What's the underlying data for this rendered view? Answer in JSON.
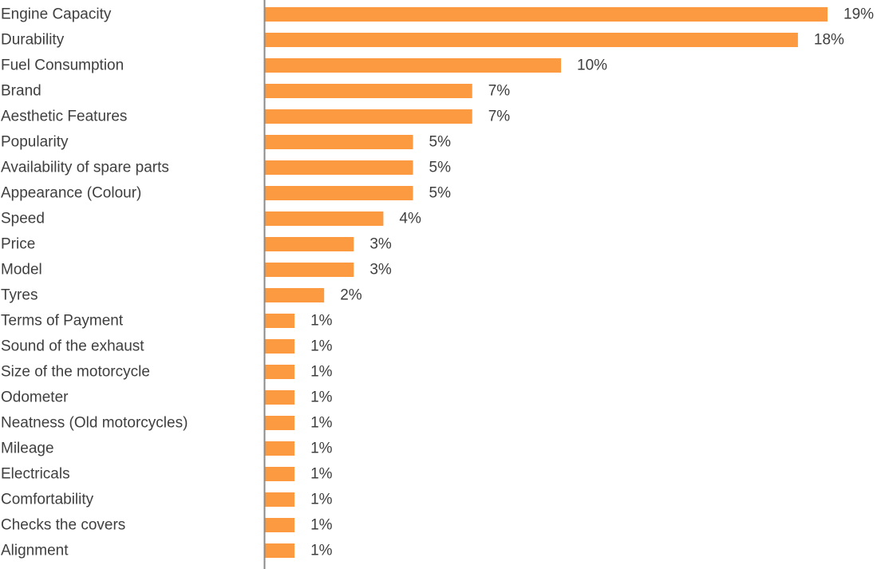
{
  "chart_data": {
    "type": "bar",
    "orientation": "horizontal",
    "title": "",
    "xlabel": "",
    "ylabel": "",
    "unit": "%",
    "xlim": [
      0,
      19
    ],
    "grid": false,
    "legend": "none",
    "bar_color": "#fb9a40",
    "axis_color": "#8a8a8a",
    "text_color": "#3f3f3f",
    "categories": [
      "Engine Capacity",
      "Durability",
      "Fuel Consumption",
      "Brand",
      "Aesthetic Features",
      "Popularity",
      "Availability of spare parts",
      "Appearance (Colour)",
      "Speed",
      "Price",
      "Model",
      "Tyres",
      "Terms of Payment",
      "Sound of the exhaust",
      "Size of the motorcycle",
      "Odometer",
      "Neatness (Old motorcycles)",
      "Mileage",
      "Electricals",
      "Comfortability",
      "Checks the covers",
      "Alignment"
    ],
    "values": [
      19,
      18,
      10,
      7,
      7,
      5,
      5,
      5,
      4,
      3,
      3,
      2,
      1,
      1,
      1,
      1,
      1,
      1,
      1,
      1,
      1,
      1
    ],
    "value_labels": [
      "19%",
      "18%",
      "10%",
      "7%",
      "7%",
      "5%",
      "5%",
      "5%",
      "4%",
      "3%",
      "3%",
      "2%",
      "1%",
      "1%",
      "1%",
      "1%",
      "1%",
      "1%",
      "1%",
      "1%",
      "1%",
      "1%"
    ]
  }
}
